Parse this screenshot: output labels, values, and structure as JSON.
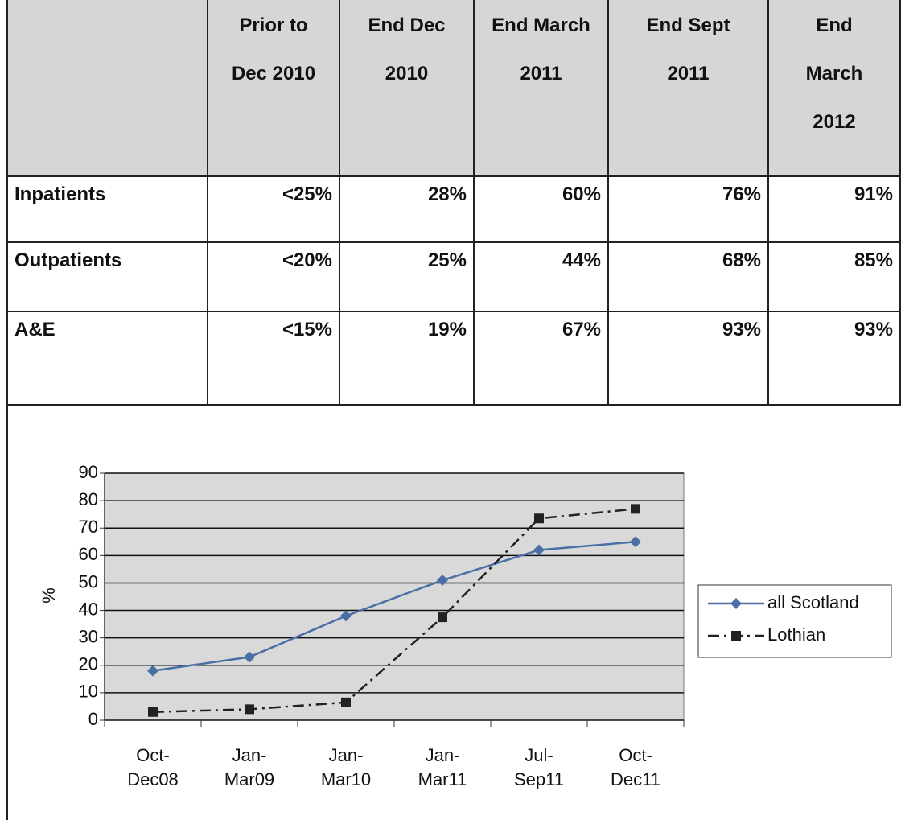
{
  "table": {
    "header": [
      "Prior to\nDec 2010",
      "End Dec\n2010",
      "End March\n2011",
      "End Sept\n2011",
      "End\nMarch\n2012"
    ],
    "rows": [
      [
        "Inpatients",
        "<25%",
        "28%",
        "60%",
        "76%",
        "91%"
      ],
      [
        "Outpatients",
        "<20%",
        "25%",
        "44%",
        "68%",
        "85%"
      ],
      [
        "A&E",
        "<15%",
        "19%",
        "67%",
        "93%",
        "93%"
      ]
    ]
  },
  "chart_data": {
    "type": "line",
    "y_label": "%",
    "categories": [
      "Oct-\nDec08",
      "Jan-\nMar09",
      "Jan-\nMar10",
      "Jan-\nMar11",
      "Jul-\nSep11",
      "Oct-\nDec11"
    ],
    "series": [
      {
        "name": "all Scotland",
        "color": "#4a6fa5",
        "values": [
          18,
          23,
          38,
          51,
          62,
          65
        ]
      },
      {
        "name": "Lothian",
        "color": "#222222",
        "values": [
          3,
          4,
          6.5,
          37.5,
          73.5,
          77
        ]
      }
    ],
    "ylim": [
      0,
      90
    ],
    "yticks": [
      0,
      10,
      20,
      30,
      40,
      50,
      60,
      70,
      80,
      90
    ],
    "grid": true
  }
}
